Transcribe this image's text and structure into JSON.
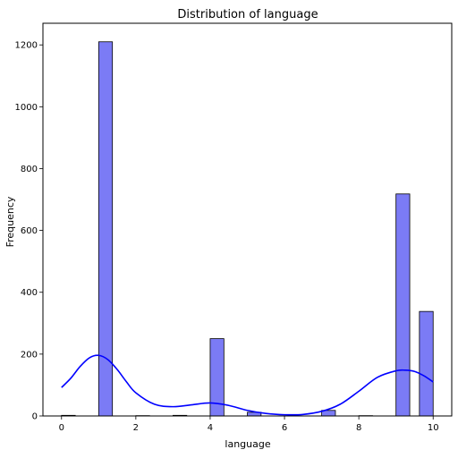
{
  "chart_data": {
    "type": "bar",
    "title": "Distribution of language",
    "xlabel": "language",
    "ylabel": "Frequency",
    "xlim": [
      -0.5,
      10.5
    ],
    "ylim": [
      0,
      1270
    ],
    "x_ticks": [
      0,
      2,
      4,
      6,
      8,
      10
    ],
    "y_ticks": [
      0,
      200,
      400,
      600,
      800,
      1000,
      1200
    ],
    "bar_color": "#7b7bf5",
    "kde_color": "#0000ff",
    "bins": [
      {
        "x0": 0.0,
        "x1": 0.37,
        "value": 2
      },
      {
        "x0": 1.0,
        "x1": 1.37,
        "value": 1210
      },
      {
        "x0": 2.0,
        "x1": 2.37,
        "value": 1
      },
      {
        "x0": 3.0,
        "x1": 3.37,
        "value": 2
      },
      {
        "x0": 4.0,
        "x1": 4.37,
        "value": 250
      },
      {
        "x0": 5.0,
        "x1": 5.37,
        "value": 12
      },
      {
        "x0": 7.0,
        "x1": 7.37,
        "value": 18
      },
      {
        "x0": 8.0,
        "x1": 8.37,
        "value": 1
      },
      {
        "x0": 9.0,
        "x1": 9.37,
        "value": 718
      },
      {
        "x0": 9.63,
        "x1": 10.0,
        "value": 338
      }
    ],
    "kde": {
      "x": [
        0,
        0.25,
        0.5,
        0.75,
        1.0,
        1.25,
        1.5,
        1.75,
        2.0,
        2.5,
        3.0,
        3.5,
        4.0,
        4.5,
        5.0,
        5.5,
        6.0,
        6.5,
        7.0,
        7.5,
        8.0,
        8.5,
        9.0,
        9.25,
        9.5,
        9.75,
        10.0
      ],
      "y": [
        92,
        122,
        160,
        188,
        196,
        182,
        150,
        110,
        75,
        38,
        30,
        36,
        42,
        34,
        18,
        8,
        4,
        5,
        15,
        38,
        80,
        125,
        146,
        148,
        144,
        130,
        110
      ]
    }
  }
}
